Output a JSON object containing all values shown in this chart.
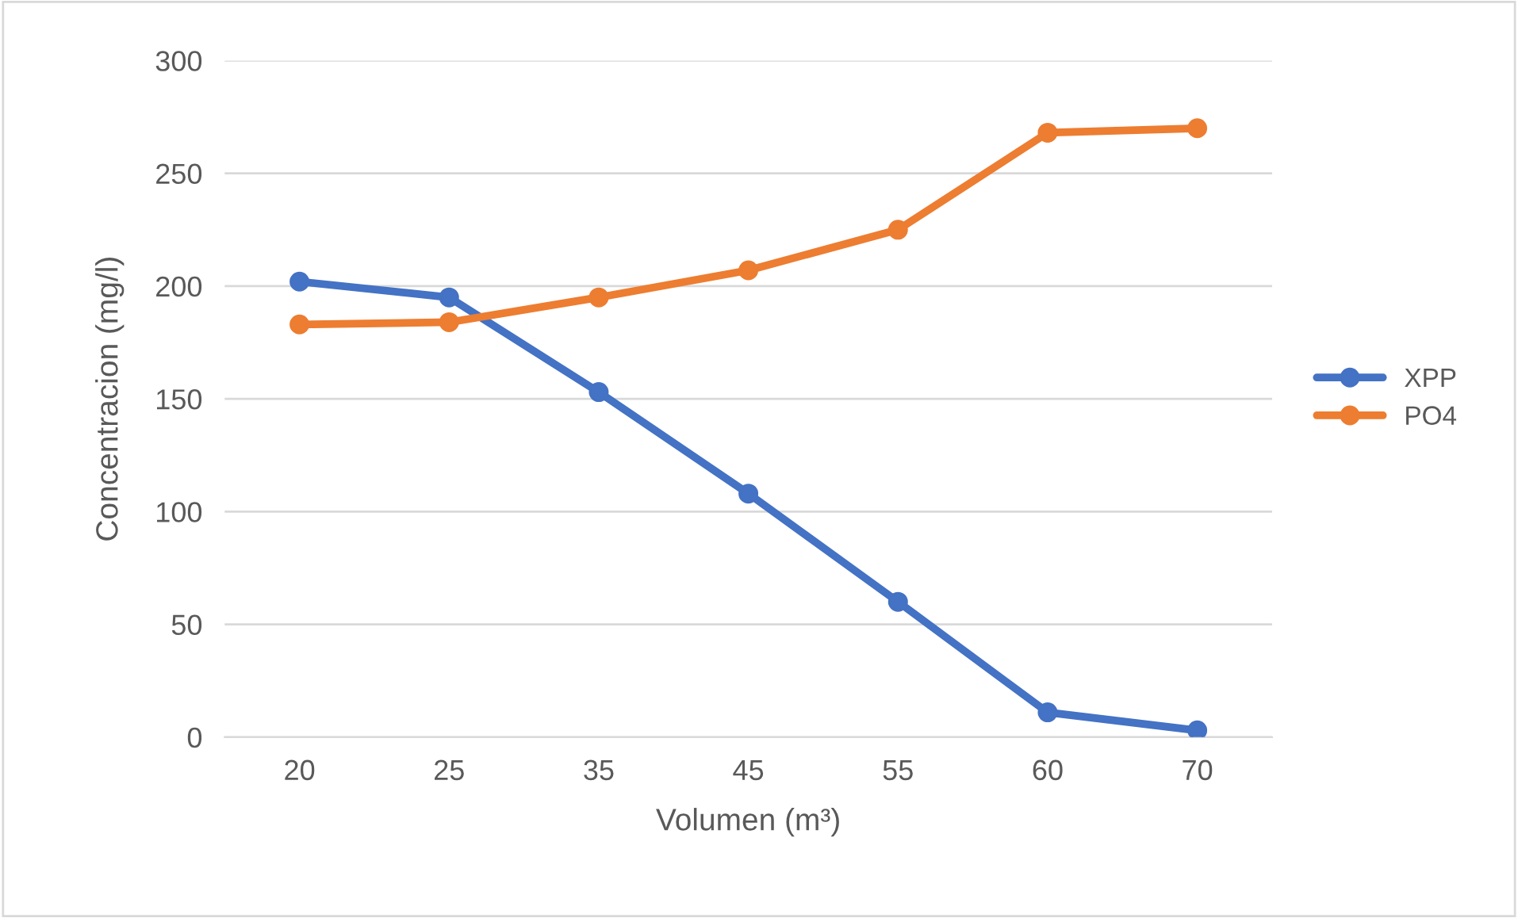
{
  "chart_data": {
    "type": "line",
    "xlabel": "Volumen (m³)",
    "ylabel": "Concentracion (mg/l)",
    "categories": [
      "20",
      "25",
      "35",
      "45",
      "55",
      "60",
      "70"
    ],
    "series": [
      {
        "name": "XPP",
        "color": "#4472c4",
        "values": [
          202,
          195,
          153,
          108,
          60,
          11,
          3
        ]
      },
      {
        "name": "PO4",
        "color": "#ed7d31",
        "values": [
          183,
          184,
          195,
          207,
          225,
          268,
          270
        ]
      }
    ],
    "ylim": [
      0,
      300
    ],
    "yticks": [
      0,
      50,
      100,
      150,
      200,
      250,
      300
    ],
    "grid": "y",
    "legend": "right",
    "marker": "circle",
    "line_style": "solid"
  }
}
